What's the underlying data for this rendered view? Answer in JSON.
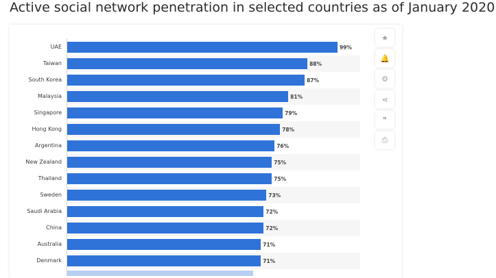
{
  "page": {
    "title": "Active social network penetration in selected countries as of January 2020"
  },
  "toolbar": [
    {
      "name": "star-icon",
      "glyph": "★"
    },
    {
      "name": "bell-icon",
      "glyph": "🔔"
    },
    {
      "name": "gear-icon",
      "glyph": "⚙"
    },
    {
      "name": "share-icon",
      "glyph": "⋖"
    },
    {
      "name": "quote-icon",
      "glyph": "❞"
    },
    {
      "name": "print-icon",
      "glyph": "⎙"
    }
  ],
  "chart_data": {
    "type": "bar",
    "orientation": "horizontal",
    "categories": [
      "UAE",
      "Taiwan",
      "South Korea",
      "Malaysia",
      "Singapore",
      "Hong Kong",
      "Argentina",
      "New Zealand",
      "Thailand",
      "Sweden",
      "Saudi Arabia",
      "China",
      "Australia",
      "Denmark"
    ],
    "values": [
      99,
      88,
      87,
      81,
      79,
      78,
      76,
      75,
      75,
      73,
      72,
      72,
      71,
      71
    ],
    "value_labels": [
      "99%",
      "88%",
      "87%",
      "81%",
      "79%",
      "78%",
      "76%",
      "75%",
      "75%",
      "73%",
      "72%",
      "72%",
      "71%",
      "71%"
    ],
    "xlim": [
      0,
      100
    ],
    "grid": false,
    "bar_color": "#2f73d9"
  }
}
